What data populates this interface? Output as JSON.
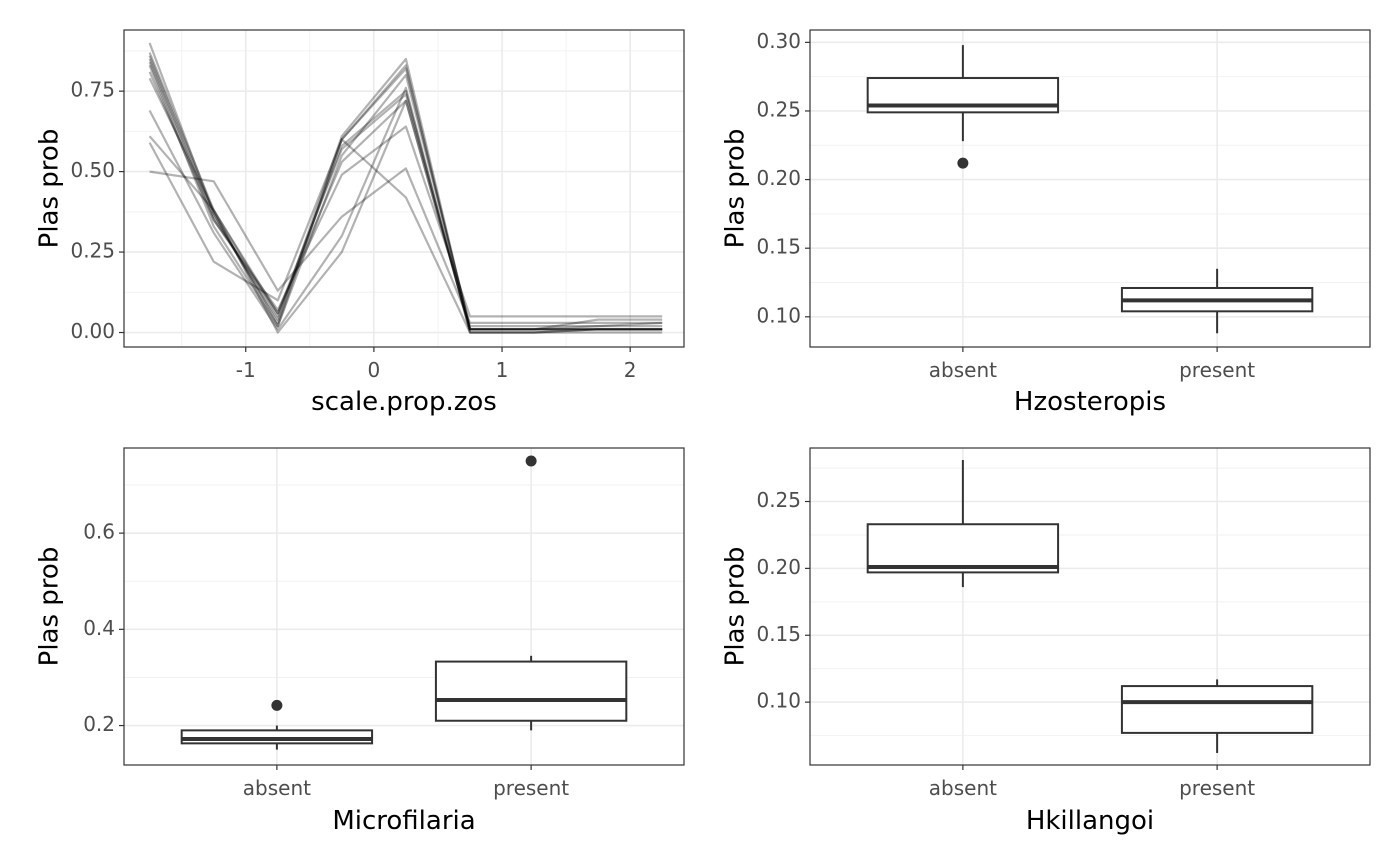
{
  "chart_data": [
    {
      "type": "line",
      "xlabel": "scale.prop.zos",
      "ylabel": "Plas prob",
      "xlim": [
        -1.95,
        2.42
      ],
      "ylim": [
        -0.045,
        0.94
      ],
      "x_ticks": [
        -1,
        0,
        1,
        2
      ],
      "x_tick_labels": [
        "-1",
        "0",
        "1",
        "2"
      ],
      "y_ticks": [
        0,
        0.25,
        0.5,
        0.75
      ],
      "y_tick_labels": [
        "0.00",
        "0.25",
        "0.50",
        "0.75"
      ],
      "x": [
        -1.75,
        -1.25,
        -0.75,
        -0.25,
        0.25,
        0.75,
        1.25,
        1.75,
        2.25
      ],
      "series": [
        {
          "values": [
            0.9,
            0.37,
            0.02,
            0.6,
            0.82,
            0.01,
            0.01,
            0.01,
            0.01
          ]
        },
        {
          "values": [
            0.87,
            0.38,
            0.05,
            0.58,
            0.75,
            0.0,
            0.0,
            0.01,
            0.01
          ]
        },
        {
          "values": [
            0.85,
            0.36,
            0.04,
            0.61,
            0.85,
            0.01,
            0.01,
            0.02,
            0.02
          ]
        },
        {
          "values": [
            0.83,
            0.33,
            0.02,
            0.55,
            0.8,
            0.02,
            0.02,
            0.02,
            0.03
          ]
        },
        {
          "values": [
            0.81,
            0.35,
            0.07,
            0.49,
            0.64,
            0.05,
            0.05,
            0.05,
            0.05
          ]
        },
        {
          "values": [
            0.79,
            0.38,
            0.06,
            0.53,
            0.72,
            0.01,
            0.01,
            0.01,
            0.01
          ]
        },
        {
          "values": [
            0.69,
            0.31,
            0.01,
            0.3,
            0.76,
            0.0,
            0.0,
            0.0,
            0.0
          ]
        },
        {
          "values": [
            0.61,
            0.38,
            0.0,
            0.25,
            0.72,
            0.01,
            0.01,
            0.04,
            0.04
          ]
        },
        {
          "values": [
            0.59,
            0.22,
            0.1,
            0.6,
            0.42,
            0.0,
            0.0,
            0.01,
            0.01
          ]
        },
        {
          "values": [
            0.5,
            0.47,
            0.13,
            0.36,
            0.51,
            0.03,
            0.03,
            0.03,
            0.03
          ]
        },
        {
          "values": [
            0.86,
            0.37,
            0.03,
            0.6,
            0.83,
            0.01,
            0.01,
            0.01,
            0.01
          ]
        },
        {
          "values": [
            0.84,
            0.35,
            0.06,
            0.57,
            0.74,
            0.01,
            0.01,
            0.01,
            0.01
          ]
        }
      ],
      "line_color": "#000000",
      "line_opacity": 0.3,
      "grid": true
    },
    {
      "type": "boxplot",
      "xlabel": "Hzosteropis",
      "ylabel": "Plas prob",
      "categories": [
        "absent",
        "present"
      ],
      "ylim": [
        0.078,
        0.309
      ],
      "y_ticks": [
        0.1,
        0.15,
        0.2,
        0.25,
        0.3
      ],
      "y_tick_labels": [
        "0.10",
        "0.15",
        "0.20",
        "0.25",
        "0.30"
      ],
      "boxes": [
        {
          "whisker_low": 0.228,
          "q1": 0.249,
          "median": 0.254,
          "q3": 0.274,
          "whisker_high": 0.298,
          "outliers": [
            0.212
          ]
        },
        {
          "whisker_low": 0.088,
          "q1": 0.104,
          "median": 0.112,
          "q3": 0.121,
          "whisker_high": 0.135,
          "outliers": []
        }
      ],
      "grid": true
    },
    {
      "type": "boxplot",
      "xlabel": "Microfilaria",
      "ylabel": "Plas prob",
      "categories": [
        "absent",
        "present"
      ],
      "ylim": [
        0.118,
        0.777
      ],
      "y_ticks": [
        0.2,
        0.4,
        0.6
      ],
      "y_tick_labels": [
        "0.2",
        "0.4",
        "0.6"
      ],
      "boxes": [
        {
          "whisker_low": 0.15,
          "q1": 0.163,
          "median": 0.172,
          "q3": 0.19,
          "whisker_high": 0.2,
          "outliers": [
            0.242
          ]
        },
        {
          "whisker_low": 0.19,
          "q1": 0.21,
          "median": 0.253,
          "q3": 0.333,
          "whisker_high": 0.345,
          "outliers": [
            0.75
          ]
        }
      ],
      "grid": true
    },
    {
      "type": "boxplot",
      "xlabel": "Hkillangoi",
      "ylabel": "Plas prob",
      "categories": [
        "absent",
        "present"
      ],
      "ylim": [
        0.053,
        0.29
      ],
      "y_ticks": [
        0.1,
        0.15,
        0.2,
        0.25
      ],
      "y_tick_labels": [
        "0.10",
        "0.15",
        "0.20",
        "0.25"
      ],
      "boxes": [
        {
          "whisker_low": 0.186,
          "q1": 0.197,
          "median": 0.201,
          "q3": 0.233,
          "whisker_high": 0.281,
          "outliers": []
        },
        {
          "whisker_low": 0.062,
          "q1": 0.077,
          "median": 0.1,
          "q3": 0.112,
          "whisker_high": 0.117,
          "outliers": []
        }
      ],
      "grid": true
    }
  ]
}
